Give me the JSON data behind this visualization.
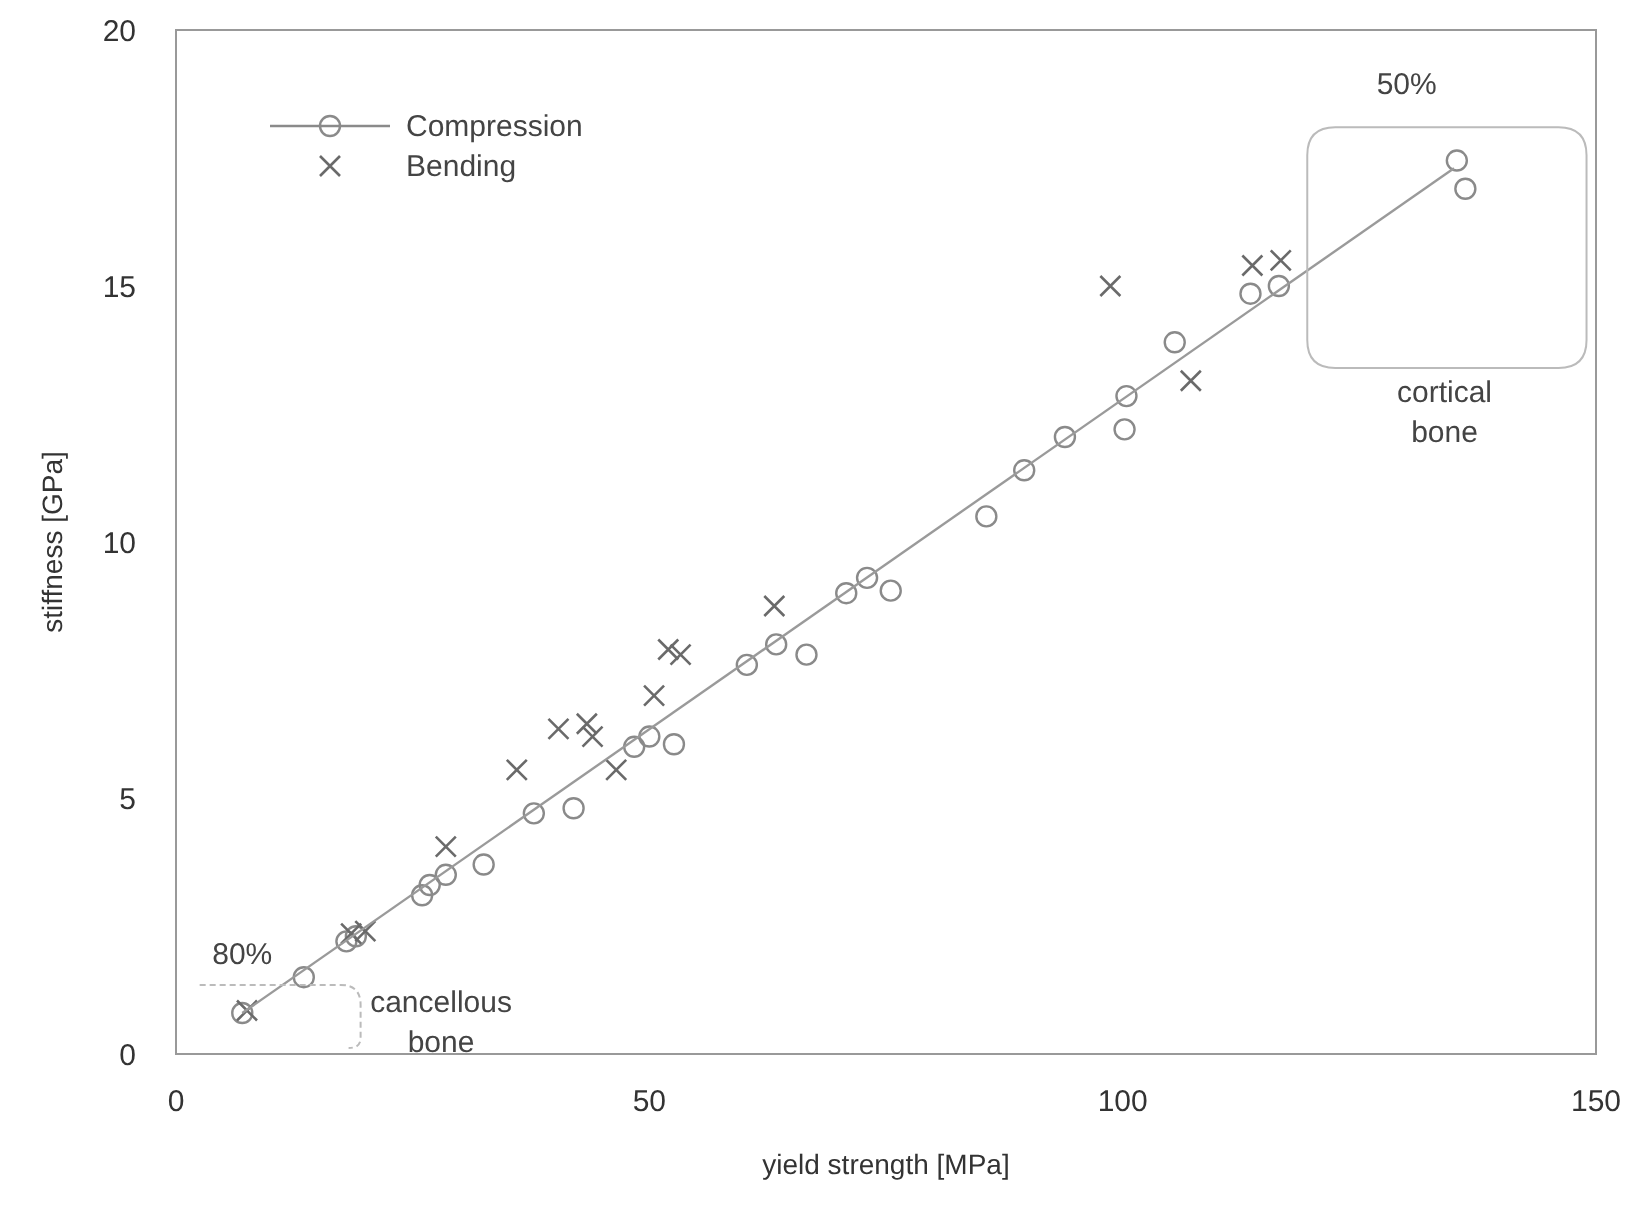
{
  "chart_data": {
    "type": "scatter",
    "xlabel": "yield strength [MPa]",
    "ylabel": "stiffness [GPa]",
    "xlim": [
      0,
      150
    ],
    "xticks": [
      0,
      50,
      100,
      150
    ],
    "ylim": [
      0,
      20
    ],
    "yticks": [
      0,
      5,
      10,
      15,
      20
    ],
    "legend": "top left",
    "annotations": [
      "80%",
      "cancellous bone",
      "50%",
      "cortical bone"
    ],
    "series": [
      {
        "name": "Compression",
        "type": "scatter",
        "marker": "circle",
        "color": "#8a8a8a",
        "x": [
          7,
          13.5,
          18,
          19,
          26,
          26.8,
          28.5,
          32.5,
          37.8,
          42,
          48.4,
          50,
          52.6,
          60.3,
          63.4,
          66.6,
          70.8,
          73,
          75.5,
          85.6,
          89.6,
          93.9,
          100.2,
          100.4,
          105.5,
          113.5,
          116.5,
          135.3,
          136.2
        ],
        "values": [
          0.8,
          1.5,
          2.2,
          2.3,
          3.1,
          3.3,
          3.5,
          3.7,
          4.7,
          4.8,
          6,
          6.2,
          6.05,
          7.6,
          8,
          7.8,
          9,
          9.3,
          9.05,
          10.5,
          11.4,
          12.05,
          12.2,
          12.85,
          13.9,
          14.85,
          15,
          17.45,
          16.9
        ]
      },
      {
        "name": "Bending",
        "type": "scatter",
        "marker": "cross",
        "color": "#6a6a6a",
        "x": [
          7.5,
          18.5,
          20,
          28.5,
          36,
          40.4,
          43.4,
          44,
          46.5,
          50.5,
          52,
          53.3,
          63.2,
          98.7,
          107.2,
          113.7,
          116.7
        ],
        "values": [
          0.85,
          2.35,
          2.4,
          4.05,
          5.55,
          6.35,
          6.45,
          6.2,
          5.55,
          7,
          7.9,
          7.8,
          8.75,
          15,
          13.15,
          15.4,
          15.5
        ]
      },
      {
        "type": "line",
        "marker": "none",
        "color": "#9a9a9a",
        "x": [
          7,
          135
        ],
        "values": [
          0.8,
          17.3
        ]
      }
    ]
  }
}
